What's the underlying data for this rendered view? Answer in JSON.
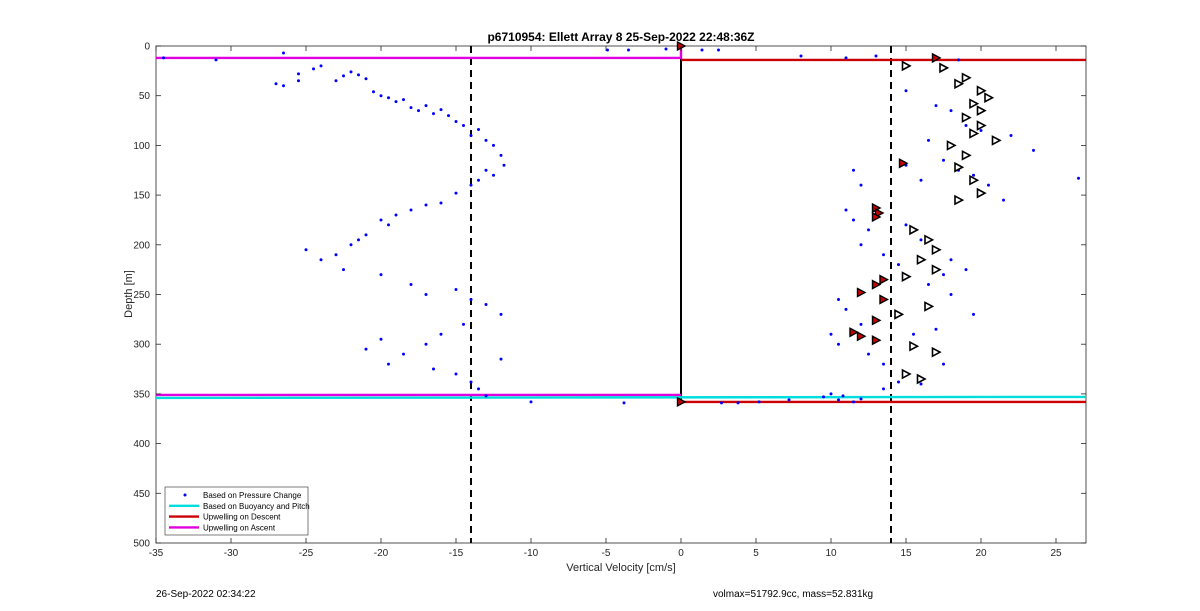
{
  "chart_data": {
    "type": "scatter",
    "title": "p6710954: Ellett Array 8 25-Sep-2022 22:48:36Z",
    "xlabel": "Vertical Velocity [cm/s]",
    "ylabel": "Depth [m]",
    "xlim": [
      -35,
      27
    ],
    "ylim": [
      0,
      500
    ],
    "y_reversed": true,
    "grid": false,
    "legend_position": "bottom-left",
    "xticks": [
      -35,
      -30,
      -25,
      -20,
      -15,
      -10,
      -5,
      0,
      5,
      10,
      15,
      20,
      25
    ],
    "yticks": [
      0,
      50,
      100,
      150,
      200,
      250,
      300,
      350,
      400,
      450,
      500
    ],
    "colors": {
      "pressure": "#0000ff",
      "buoyancy": "#00dddd",
      "descent": "#cc0000",
      "ascent": "#e000e0"
    },
    "reference_lines": {
      "dashed_x": [
        -14,
        14
      ],
      "zero_x_depth_range": [
        0,
        360
      ]
    },
    "series": [
      {
        "name": "Based on Pressure Change",
        "points": [
          [
            -34.5,
            12
          ],
          [
            -31,
            14
          ],
          [
            -26.5,
            7
          ],
          [
            -4.9,
            4
          ],
          [
            -3.5,
            4
          ],
          [
            -1,
            3
          ],
          [
            1.4,
            4
          ],
          [
            2.5,
            4
          ],
          [
            8,
            10
          ],
          [
            11,
            12
          ],
          [
            13,
            10
          ],
          [
            18.5,
            14
          ],
          [
            -27,
            38
          ],
          [
            -26.5,
            40
          ],
          [
            -25.5,
            35
          ],
          [
            -25.5,
            28
          ],
          [
            -24.5,
            23
          ],
          [
            -24,
            20
          ],
          [
            -23,
            35
          ],
          [
            -22.5,
            30
          ],
          [
            -22,
            26
          ],
          [
            -21.5,
            29
          ],
          [
            -21,
            33
          ],
          [
            -20.5,
            46
          ],
          [
            -20,
            50
          ],
          [
            -19.5,
            52
          ],
          [
            -19,
            56
          ],
          [
            -18.5,
            54
          ],
          [
            -18,
            62
          ],
          [
            -17.5,
            65
          ],
          [
            -17,
            60
          ],
          [
            -16.5,
            68
          ],
          [
            -16,
            64
          ],
          [
            -15.5,
            70
          ],
          [
            -15,
            76
          ],
          [
            -14.5,
            80
          ],
          [
            -14,
            90
          ],
          [
            -13.5,
            84
          ],
          [
            -13,
            95
          ],
          [
            -12.5,
            100
          ],
          [
            -12,
            110
          ],
          [
            -11.8,
            120
          ],
          [
            -12.5,
            130
          ],
          [
            -13,
            125
          ],
          [
            -13.5,
            135
          ],
          [
            -14,
            140
          ],
          [
            -15,
            148
          ],
          [
            -16,
            158
          ],
          [
            -17,
            160
          ],
          [
            -18,
            165
          ],
          [
            -19,
            170
          ],
          [
            -20,
            175
          ],
          [
            -19.5,
            180
          ],
          [
            -21,
            190
          ],
          [
            -21.5,
            195
          ],
          [
            -22,
            200
          ],
          [
            -23,
            210
          ],
          [
            -24,
            215
          ],
          [
            -25,
            205
          ],
          [
            -22.5,
            225
          ],
          [
            -20,
            230
          ],
          [
            -18,
            240
          ],
          [
            -17,
            250
          ],
          [
            -15,
            245
          ],
          [
            -14,
            255
          ],
          [
            -13,
            260
          ],
          [
            -12,
            270
          ],
          [
            -14.5,
            280
          ],
          [
            -16,
            290
          ],
          [
            -17,
            300
          ],
          [
            -18.5,
            310
          ],
          [
            -19.5,
            320
          ],
          [
            -20,
            295
          ],
          [
            -21,
            305
          ],
          [
            -16.5,
            325
          ],
          [
            -15,
            330
          ],
          [
            -14,
            338
          ],
          [
            -12,
            315
          ],
          [
            -13.5,
            345
          ],
          [
            -13,
            352
          ],
          [
            -10,
            358
          ],
          [
            -3.8,
            359
          ],
          [
            2.7,
            359
          ],
          [
            3.8,
            359
          ],
          [
            5.2,
            358
          ],
          [
            7.2,
            356
          ],
          [
            9.5,
            353
          ],
          [
            10.8,
            352
          ],
          [
            10,
            350
          ],
          [
            15,
            45
          ],
          [
            17,
            60
          ],
          [
            18,
            65
          ],
          [
            19,
            80
          ],
          [
            20,
            85
          ],
          [
            21,
            95
          ],
          [
            22,
            90
          ],
          [
            23.5,
            105
          ],
          [
            16.5,
            95
          ],
          [
            17.5,
            115
          ],
          [
            18.5,
            125
          ],
          [
            19.5,
            130
          ],
          [
            20.5,
            140
          ],
          [
            21.5,
            155
          ],
          [
            26.5,
            133
          ],
          [
            16,
            135
          ],
          [
            15,
            120
          ],
          [
            11.5,
            125
          ],
          [
            12,
            140
          ],
          [
            11,
            165
          ],
          [
            11.5,
            175
          ],
          [
            12.5,
            185
          ],
          [
            15,
            180
          ],
          [
            16,
            195
          ],
          [
            17,
            205
          ],
          [
            18,
            215
          ],
          [
            19,
            225
          ],
          [
            17.5,
            230
          ],
          [
            12,
            200
          ],
          [
            13.5,
            210
          ],
          [
            14.5,
            220
          ],
          [
            16.5,
            240
          ],
          [
            18,
            250
          ],
          [
            19.5,
            270
          ],
          [
            17,
            285
          ],
          [
            15.5,
            290
          ],
          [
            10.5,
            255
          ],
          [
            11,
            265
          ],
          [
            12,
            280
          ],
          [
            10,
            290
          ],
          [
            10.5,
            300
          ],
          [
            12.5,
            310
          ],
          [
            13.5,
            320
          ],
          [
            15,
            330
          ],
          [
            16,
            340
          ],
          [
            17.5,
            320
          ],
          [
            13.5,
            345
          ],
          [
            14.5,
            338
          ],
          [
            12,
            355
          ],
          [
            10.5,
            356
          ],
          [
            11.5,
            358
          ]
        ]
      },
      {
        "name": "Upwelling on Descent markers",
        "marker": "triangle-right",
        "points": [
          [
            15,
            20
          ],
          [
            17.5,
            22
          ],
          [
            19,
            32
          ],
          [
            18.5,
            38
          ],
          [
            20,
            45
          ],
          [
            20.5,
            52
          ],
          [
            19.5,
            58
          ],
          [
            20,
            65
          ],
          [
            19,
            72
          ],
          [
            20,
            80
          ],
          [
            19.5,
            88
          ],
          [
            21,
            95
          ],
          [
            18,
            100
          ],
          [
            19,
            110
          ],
          [
            18.5,
            122
          ],
          [
            19.5,
            135
          ],
          [
            20,
            148
          ],
          [
            18.5,
            155
          ],
          [
            15.5,
            185
          ],
          [
            16.5,
            195
          ],
          [
            17,
            205
          ],
          [
            16,
            215
          ],
          [
            17,
            225
          ],
          [
            15,
            232
          ],
          [
            16.5,
            262
          ],
          [
            14.5,
            270
          ],
          [
            15.5,
            302
          ],
          [
            17,
            308
          ],
          [
            15,
            330
          ],
          [
            16,
            335
          ]
        ]
      },
      {
        "name": "Upwelling on Ascent markers",
        "marker": "filled-red",
        "points": [
          [
            0,
            0
          ],
          [
            17,
            12
          ],
          [
            14.8,
            118
          ],
          [
            13,
            163
          ],
          [
            13.2,
            168
          ],
          [
            13,
            172
          ],
          [
            12,
            248
          ],
          [
            13,
            240
          ],
          [
            13.5,
            235
          ],
          [
            13.5,
            255
          ],
          [
            13,
            276
          ],
          [
            11.5,
            288
          ],
          [
            12,
            292
          ],
          [
            13,
            296
          ],
          [
            0,
            358
          ]
        ]
      }
    ],
    "lines": [
      {
        "name": "Upwelling on Ascent",
        "x": [
          -35,
          0,
          0
        ],
        "y": [
          12,
          12,
          3
        ],
        "color": "#e000e0"
      },
      {
        "name": "Upwelling on Ascent",
        "x": [
          -35,
          0
        ],
        "y": [
          351,
          351
        ],
        "color": "#e000e0"
      },
      {
        "name": "Upwelling on Descent",
        "x": [
          0,
          27
        ],
        "y": [
          14,
          14
        ],
        "color": "#cc0000"
      },
      {
        "name": "Upwelling on Descent",
        "x": [
          0,
          27
        ],
        "y": [
          358,
          358
        ],
        "color": "#cc0000"
      },
      {
        "name": "Based on Buoyancy and Pitch",
        "x": [
          -35,
          27
        ],
        "y": [
          354,
          353
        ],
        "color": "#00dddd"
      }
    ],
    "legend": [
      {
        "label": "Based on Pressure Change",
        "style": "dot",
        "color": "#0000ff"
      },
      {
        "label": "Based on Buoyancy and Pitch",
        "style": "line",
        "color": "#00dddd"
      },
      {
        "label": "Upwelling on Descent",
        "style": "line",
        "color": "#cc0000"
      },
      {
        "label": "Upwelling on Ascent",
        "style": "line",
        "color": "#e000e0"
      }
    ]
  },
  "footer": {
    "timestamp": "26-Sep-2022 02:34:22",
    "volmax_mass": "volmax=51792.9cc, mass=52.831kg"
  }
}
